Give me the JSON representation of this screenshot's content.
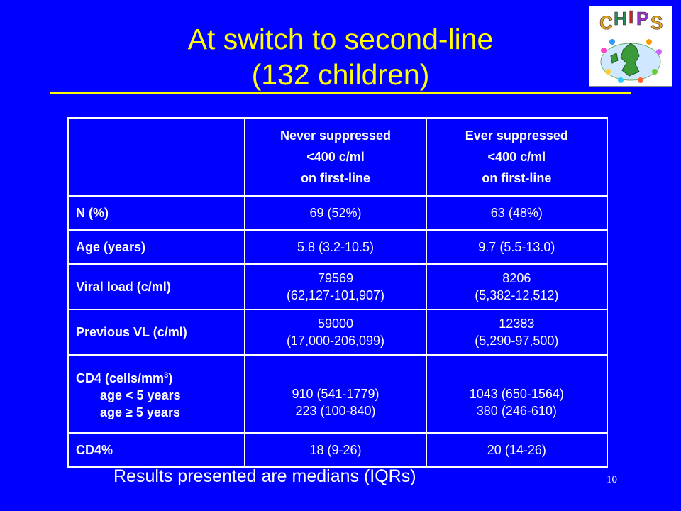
{
  "title": {
    "line1": "At switch to second-line",
    "line2": "(132 children)"
  },
  "logo": {
    "text": "CHIPS"
  },
  "table": {
    "header": {
      "col1": [
        "Never suppressed",
        "<400 c/ml",
        "on first-line"
      ],
      "col2": [
        "Ever suppressed",
        "<400 c/ml",
        "on first-line"
      ]
    },
    "rows": [
      {
        "label": "N (%)",
        "c1": [
          "69 (52%)"
        ],
        "c2": [
          "63 (48%)"
        ]
      },
      {
        "label": "Age (years)",
        "c1": [
          "5.8 (3.2-10.5)"
        ],
        "c2": [
          "9.7 (5.5-13.0)"
        ]
      },
      {
        "label": "Viral load (c/ml)",
        "c1": [
          "79569",
          "(62,127-101,907)"
        ],
        "c2": [
          "8206",
          "(5,382-12,512)"
        ]
      },
      {
        "label": "Previous VL (c/ml)",
        "c1": [
          "59000",
          "(17,000-206,099)"
        ],
        "c2": [
          "12383",
          "(5,290-97,500)"
        ]
      },
      {
        "label": "CD4 (cells/mm",
        "label_sup": "3",
        "label_close": ")",
        "sub1": "age < 5 years",
        "sub2": "age ≥ 5 years",
        "c1": [
          "910 (541-1779)",
          "223 (100-840)"
        ],
        "c2": [
          "1043 (650-1564)",
          "380 (246-610)"
        ]
      },
      {
        "label": "CD4%",
        "c1": [
          "18 (9-26)"
        ],
        "c2": [
          "20 (14-26)"
        ]
      }
    ]
  },
  "footnote": "Results presented are medians (IQRs)",
  "page_number": "10",
  "colors": {
    "background": "#0000ff",
    "title": "#ffff00",
    "text": "#ffffff"
  }
}
